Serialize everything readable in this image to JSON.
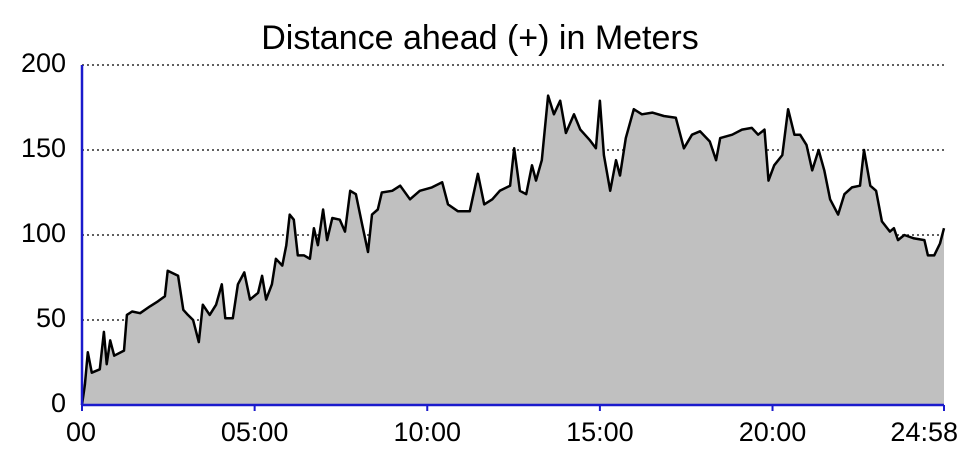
{
  "chart_data": {
    "type": "area",
    "title": "Distance ahead (+) in Meters",
    "x": [
      0,
      5,
      10,
      17,
      31,
      38,
      43,
      49,
      56,
      73,
      78,
      87,
      101,
      118,
      132,
      144,
      149,
      167,
      176,
      184,
      193,
      203,
      210,
      222,
      233,
      243,
      249,
      262,
      271,
      282,
      292,
      306,
      313,
      320,
      330,
      337,
      348,
      355,
      361,
      368,
      375,
      386,
      396,
      403,
      410,
      419,
      426,
      435,
      448,
      457,
      466,
      476,
      487,
      497,
      504,
      514,
      521,
      539,
      553,
      570,
      587,
      608,
      626,
      636,
      653,
      674,
      688,
      699,
      713,
      726,
      744,
      751,
      761,
      772,
      782,
      789,
      799,
      810,
      820,
      831,
      841,
      855,
      866,
      882,
      893,
      900,
      907,
      918,
      928,
      935,
      945,
      959,
      973,
      991,
      1011,
      1032,
      1046,
      1060,
      1074,
      1091,
      1102,
      1109,
      1130,
      1147,
      1164,
      1175,
      1186,
      1193,
      1203,
      1217,
      1227,
      1238,
      1248,
      1259,
      1269,
      1280,
      1290,
      1300,
      1314,
      1325,
      1338,
      1352,
      1359,
      1370,
      1380,
      1390,
      1404,
      1411,
      1418,
      1429,
      1446,
      1464,
      1470,
      1481,
      1491,
      1498
    ],
    "values": [
      0,
      12,
      31,
      19,
      21,
      43,
      24,
      38,
      29,
      32,
      53,
      55,
      54,
      58,
      61,
      64,
      79,
      76,
      56,
      53,
      50,
      37,
      59,
      53,
      59,
      71,
      51,
      51,
      71,
      78,
      62,
      66,
      76,
      62,
      71,
      86,
      82,
      94,
      112,
      109,
      88,
      88,
      86,
      104,
      94,
      115,
      97,
      110,
      109,
      102,
      126,
      124,
      106,
      90,
      112,
      115,
      125,
      126,
      129,
      121,
      126,
      128,
      131,
      118,
      114,
      114,
      136,
      118,
      121,
      126,
      129,
      151,
      126,
      124,
      141,
      132,
      144,
      182,
      171,
      179,
      160,
      171,
      162,
      156,
      151,
      179,
      147,
      126,
      144,
      135,
      157,
      174,
      171,
      172,
      170,
      169,
      151,
      159,
      161,
      155,
      144,
      157,
      159,
      162,
      163,
      159,
      162,
      132,
      141,
      147,
      174,
      159,
      159,
      153,
      138,
      150,
      138,
      121,
      112,
      124,
      128,
      129,
      150,
      129,
      126,
      108,
      102,
      104,
      97,
      100,
      98,
      97,
      88,
      88,
      95,
      104
    ],
    "fill": "#c0c0c0",
    "color": "#000000",
    "axis_color": "#1a1acc",
    "xlim": [
      0,
      1498
    ],
    "xticks": [
      {
        "value": 0,
        "label": "00"
      },
      {
        "value": 300,
        "label": "05:00"
      },
      {
        "value": 600,
        "label": "10:00"
      },
      {
        "value": 900,
        "label": "15:00"
      },
      {
        "value": 1200,
        "label": "20:00"
      },
      {
        "value": 1498,
        "label": "24:58"
      }
    ],
    "ylim": [
      0,
      200
    ],
    "yticks": [
      0,
      50,
      100,
      150,
      200
    ],
    "grid": true
  }
}
